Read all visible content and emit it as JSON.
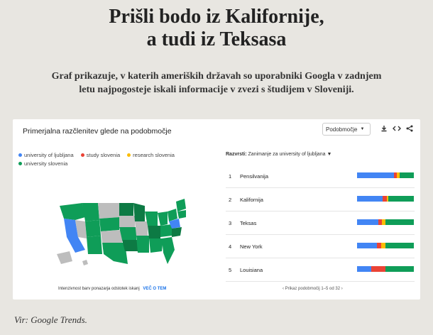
{
  "header": {
    "title_line1": "Prišli bodo iz Kalifornije,",
    "title_line2": "a tudi iz Teksasa",
    "subtitle_line1": "Graf prikazuje, v katerih ameriških državah so uporabniki Googla v zadnjem",
    "subtitle_line2": "letu najpogosteje iskali informacije v zvezi s študijem v Sloveniji."
  },
  "card": {
    "title": "Primerjalna razčlenitev glede na podobmočje",
    "select_value": "Podobmočje",
    "icons": [
      "download-icon",
      "embed-icon",
      "share-icon"
    ]
  },
  "legend": [
    {
      "label": "university of ljubljana",
      "color": "#4285f4"
    },
    {
      "label": "study slovenia",
      "color": "#ea4335"
    },
    {
      "label": "research slovenia",
      "color": "#fbbc04"
    },
    {
      "label": "university slovenia",
      "color": "#0f9d58"
    }
  ],
  "sort": {
    "label": "Razvrsti:",
    "value": "Zanimanje za university of ljubljana"
  },
  "rows": [
    {
      "rank": "1",
      "name": "Pensilvanija",
      "shares": [
        0.65,
        0.05,
        0.05,
        0.25
      ]
    },
    {
      "rank": "2",
      "name": "Kalifornija",
      "shares": [
        0.45,
        0.07,
        0.03,
        0.45
      ]
    },
    {
      "rank": "3",
      "name": "Teksas",
      "shares": [
        0.38,
        0.06,
        0.06,
        0.5
      ]
    },
    {
      "rank": "4",
      "name": "New York",
      "shares": [
        0.35,
        0.08,
        0.07,
        0.5
      ]
    },
    {
      "rank": "5",
      "name": "Louisiana",
      "shares": [
        0.25,
        0.25,
        0.0,
        0.5
      ]
    }
  ],
  "footer": {
    "note": "Intenzivnost barv ponazarja odstotek iskanj",
    "more": "VEČ O TEM",
    "pager": "Prikaz podobmočij 1–5 od 32"
  },
  "source": "Vir: Google Trends."
}
